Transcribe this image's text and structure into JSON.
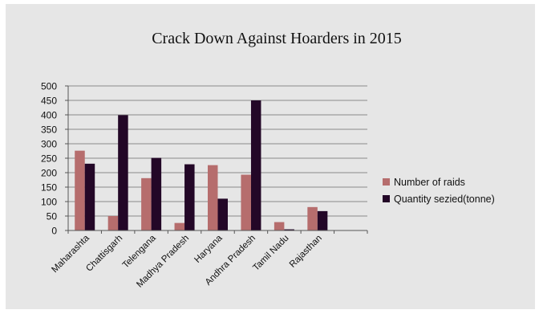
{
  "chart_data": {
    "type": "bar",
    "title": "Crack Down Against Hoarders in 2015",
    "xlabel": "",
    "ylabel": "",
    "ylim": [
      0,
      500
    ],
    "yticks": [
      0,
      50,
      100,
      150,
      200,
      250,
      300,
      350,
      400,
      450,
      500
    ],
    "grid": true,
    "legend_position": "right",
    "categories": [
      "Maharashta",
      "Chattisgarh",
      "Telengana",
      "Madhya Pradesh",
      "Haryana",
      "Andhra Pradesh",
      "Tamil Nadu",
      "Rajasthan"
    ],
    "series": [
      {
        "name": "Number of raids",
        "color": "#b66d6d",
        "values": [
          276,
          50,
          181,
          26,
          226,
          193,
          29,
          81
        ]
      },
      {
        "name": "Quantity sezied(tonne)",
        "color": "#230727",
        "values": [
          231,
          399,
          251,
          229,
          110,
          450,
          4,
          67
        ]
      }
    ]
  }
}
